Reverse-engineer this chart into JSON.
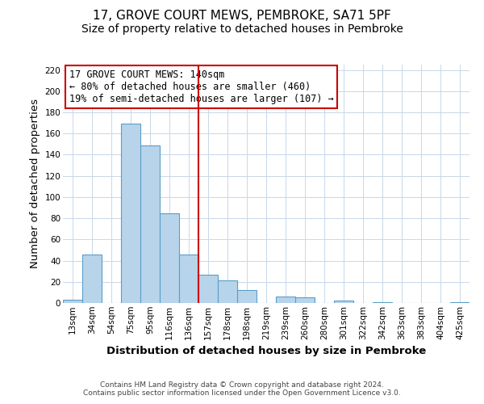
{
  "title": "17, GROVE COURT MEWS, PEMBROKE, SA71 5PF",
  "subtitle": "Size of property relative to detached houses in Pembroke",
  "xlabel": "Distribution of detached houses by size in Pembroke",
  "ylabel": "Number of detached properties",
  "bar_labels": [
    "13sqm",
    "34sqm",
    "54sqm",
    "75sqm",
    "95sqm",
    "116sqm",
    "136sqm",
    "157sqm",
    "178sqm",
    "198sqm",
    "219sqm",
    "239sqm",
    "260sqm",
    "280sqm",
    "301sqm",
    "322sqm",
    "342sqm",
    "363sqm",
    "383sqm",
    "404sqm",
    "425sqm"
  ],
  "bar_values": [
    3,
    46,
    0,
    169,
    149,
    85,
    46,
    27,
    21,
    12,
    0,
    6,
    5,
    0,
    2,
    0,
    1,
    0,
    0,
    0,
    1
  ],
  "bar_color": "#b8d4eb",
  "bar_edge_color": "#5a9ec8",
  "vline_color": "#cc0000",
  "annotation_line1": "17 GROVE COURT MEWS: 140sqm",
  "annotation_line2": "← 80% of detached houses are smaller (460)",
  "annotation_line3": "19% of semi-detached houses are larger (107) →",
  "ylim": [
    0,
    225
  ],
  "yticks": [
    0,
    20,
    40,
    60,
    80,
    100,
    120,
    140,
    160,
    180,
    200,
    220
  ],
  "footer_line1": "Contains HM Land Registry data © Crown copyright and database right 2024.",
  "footer_line2": "Contains public sector information licensed under the Open Government Licence v3.0.",
  "bg_color": "#ffffff",
  "grid_color": "#c8d8e8",
  "title_fontsize": 11,
  "subtitle_fontsize": 10,
  "axis_label_fontsize": 9.5,
  "tick_fontsize": 7.5,
  "annotation_fontsize": 8.5,
  "footer_fontsize": 6.5
}
